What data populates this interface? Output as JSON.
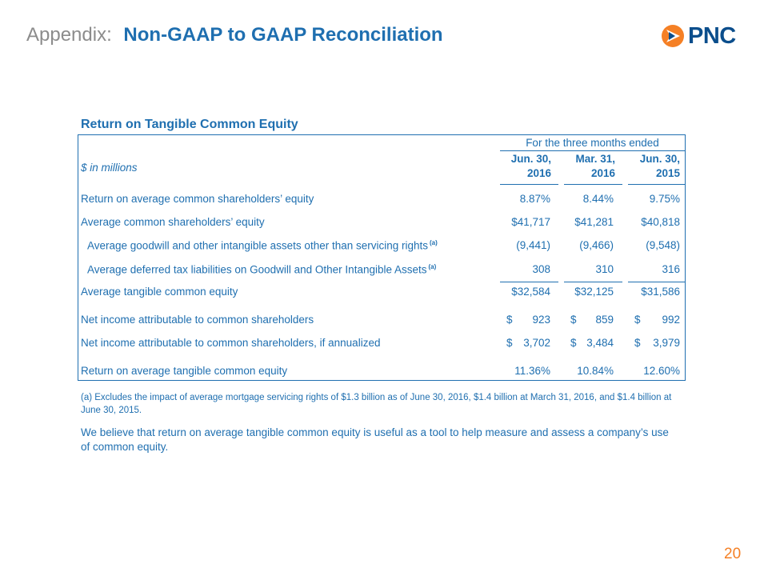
{
  "header": {
    "prefix": "Appendix:",
    "title": "Non-GAAP to GAAP Reconciliation"
  },
  "logo": {
    "brand": "PNC",
    "brand_color": "#0b4e8c",
    "mark_color": "#f58025",
    "icon": "pnc-logo-icon"
  },
  "table": {
    "section_title": "Return on Tangible Common Equity",
    "period_label": "For the three months ended",
    "units_label": "$ in millions",
    "columns": [
      {
        "line1": "Jun. 30,",
        "line2": "2016"
      },
      {
        "line1": "Mar. 31,",
        "line2": "2016"
      },
      {
        "line1": "Jun. 30,",
        "line2": "2015"
      }
    ],
    "rows": [
      {
        "label": "Return on average common shareholders’ equity",
        "values": [
          "8.87%",
          "8.44%",
          "9.75%"
        ]
      },
      {
        "label": "Average common shareholders’ equity",
        "values": [
          "$41,717",
          "$41,281",
          "$40,818"
        ]
      },
      {
        "label": "Average goodwill and other intangible assets other than servicing rights",
        "sup": "(a)",
        "values": [
          "(9,441)",
          "(9,466)",
          "(9,548)"
        ]
      },
      {
        "label": "Average deferred tax liabilities on Goodwill and Other Intangible Assets",
        "sup": "(a)",
        "values": [
          "308",
          "310",
          "316"
        ]
      },
      {
        "label": "Average tangible common equity",
        "values": [
          "$32,584",
          "$32,125",
          "$31,586"
        ]
      },
      {
        "label": "Net income attributable to common shareholders",
        "dollar": "$",
        "values": [
          "923",
          "859",
          "992"
        ]
      },
      {
        "label": "Net income attributable to common shareholders, if annualized",
        "dollar": "$",
        "values": [
          "3,702",
          "3,484",
          "3,979"
        ]
      },
      {
        "label": "Return on average tangible common equity",
        "values": [
          "11.36%",
          "10.84%",
          "12.60%"
        ]
      }
    ]
  },
  "footnote": "(a) Excludes the impact of average mortgage servicing rights of $1.3 billion as of June 30, 2016, $1.4 billion at March 31, 2016, and $1.4 billion at June 30, 2015.",
  "note": "We believe that return on average tangible common equity is useful as a tool to help measure and assess a company’s use of common equity.",
  "page_number": "20",
  "colors": {
    "accent": "#1f6fb0",
    "muted": "#8c8c8c",
    "page_number": "#f58025"
  }
}
